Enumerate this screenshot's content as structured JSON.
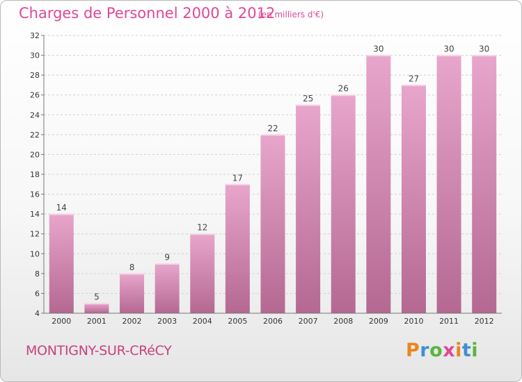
{
  "title": "Charges de Personnel 2000 à 2012",
  "subtitle": "(en milliers d'€)",
  "place": "MONTIGNY-SUR-CRéCY",
  "logo": {
    "letters": [
      "P",
      "r",
      "o",
      "x",
      "i",
      "t",
      "i"
    ],
    "colors": [
      "#e8861f",
      "#3d8fd6",
      "#5ab53e",
      "#e04796",
      "#e8861f",
      "#3d8fd6",
      "#5ab53e"
    ]
  },
  "colors": {
    "accent": "#e04796",
    "bar_top": "#e8a6cc",
    "bar_bottom": "#b46892"
  },
  "chart_data": {
    "type": "bar",
    "categories": [
      "2000",
      "2001",
      "2002",
      "2003",
      "2004",
      "2005",
      "2006",
      "2007",
      "2008",
      "2009",
      "2010",
      "2011",
      "2012"
    ],
    "values": [
      14,
      5,
      8,
      9,
      12,
      17,
      22,
      25,
      26,
      30,
      27,
      30,
      30
    ],
    "ylim": [
      4,
      32
    ],
    "yticks": [
      4,
      6,
      8,
      10,
      12,
      14,
      16,
      18,
      20,
      22,
      24,
      26,
      28,
      30,
      32
    ],
    "grid": true,
    "title": "Charges de Personnel 2000 à 2012",
    "xlabel": "",
    "ylabel": ""
  }
}
